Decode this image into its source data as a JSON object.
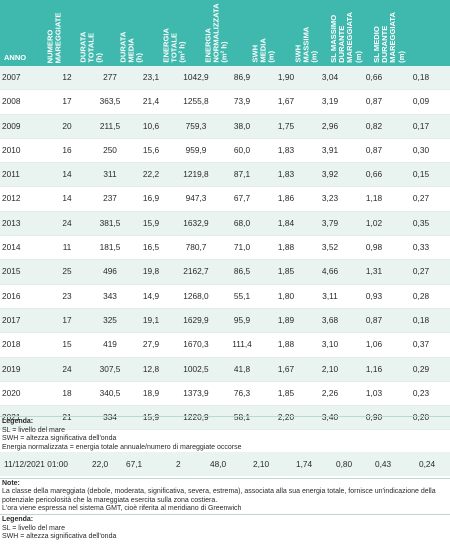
{
  "header": {
    "anno": "ANNO",
    "numero": [
      "NUMERO",
      "MAREGGIATE"
    ],
    "durata_totale": [
      "DURATA",
      "TOTALE",
      "(h)"
    ],
    "durata_media": [
      "DURATA",
      "MEDIA",
      "(h)"
    ],
    "energia_totale": [
      "ENERGIA",
      "TOTALE",
      "(m² h)"
    ],
    "energia_norm": [
      "ENERGIA",
      "NORMALIZZATA",
      "(m² h)"
    ],
    "swh_media": [
      "SWH",
      "MEDIA",
      "(m)"
    ],
    "swh_massima": [
      "SWH",
      "MASSIMA",
      "(m)"
    ],
    "sl_massimo": [
      "SL MASSIMO",
      "DURANTE",
      "MAREGGIATA",
      "(m)"
    ],
    "sl_medio": [
      "SL MEDIO",
      "DURANTE",
      "MAREGGIATA",
      "(m)"
    ]
  },
  "rows": [
    [
      "2007",
      "12",
      "277",
      "23,1",
      "1042,9",
      "86,9",
      "1,90",
      "3,04",
      "0,66",
      "0,18"
    ],
    [
      "2008",
      "17",
      "363,5",
      "21,4",
      "1255,8",
      "73,9",
      "1,67",
      "3,19",
      "0,87",
      "0,09"
    ],
    [
      "2009",
      "20",
      "211,5",
      "10,6",
      "759,3",
      "38,0",
      "1,75",
      "2,96",
      "0,82",
      "0,17"
    ],
    [
      "2010",
      "16",
      "250",
      "15,6",
      "959,9",
      "60,0",
      "1,83",
      "3,91",
      "0,87",
      "0,30"
    ],
    [
      "2011",
      "14",
      "311",
      "22,2",
      "1219,8",
      "87,1",
      "1,83",
      "3,92",
      "0,66",
      "0,15"
    ],
    [
      "2012",
      "14",
      "237",
      "16,9",
      "947,3",
      "67,7",
      "1,86",
      "3,23",
      "1,18",
      "0,27"
    ],
    [
      "2013",
      "24",
      "381,5",
      "15,9",
      "1632,9",
      "68,0",
      "1,84",
      "3,79",
      "1,02",
      "0,35"
    ],
    [
      "2014",
      "11",
      "181,5",
      "16,5",
      "780,7",
      "71,0",
      "1,88",
      "3,52",
      "0,98",
      "0,33"
    ],
    [
      "2015",
      "25",
      "496",
      "19,8",
      "2162,7",
      "86,5",
      "1,85",
      "4,66",
      "1,31",
      "0,27"
    ],
    [
      "2016",
      "23",
      "343",
      "14,9",
      "1268,0",
      "55,1",
      "1,80",
      "3,11",
      "0,93",
      "0,28"
    ],
    [
      "2017",
      "17",
      "325",
      "19,1",
      "1629,9",
      "95,9",
      "1,89",
      "3,68",
      "0,87",
      "0,18"
    ],
    [
      "2018",
      "15",
      "419",
      "27,9",
      "1670,3",
      "111,4",
      "1,88",
      "3,10",
      "1,06",
      "0,37"
    ],
    [
      "2019",
      "24",
      "307,5",
      "12,8",
      "1002,5",
      "41,8",
      "1,67",
      "2,10",
      "1,16",
      "0,29"
    ],
    [
      "2020",
      "18",
      "340,5",
      "18,9",
      "1373,9",
      "76,3",
      "1,85",
      "2,26",
      "1,03",
      "0,23"
    ],
    [
      "2021",
      "21",
      "334",
      "15,9",
      "1220,9",
      "58,1",
      "2,20",
      "3,40",
      "0,90",
      "0,20"
    ]
  ],
  "legend1": {
    "title": "Legenda:",
    "lines": [
      "SL = livello del mare",
      "SWH = altezza significativa dell'onda",
      "Energia normalizzata = energia totale annuale/numero di mareggiate occorse"
    ]
  },
  "highlight_row": [
    "11/12/2021 01:00",
    "22,0",
    "67,1",
    "2",
    "48,0",
    "2,10",
    "1,74",
    "0,80",
    "0,43",
    "0,24"
  ],
  "note": {
    "title": "Note:",
    "lines": [
      "La classe della mareggiata (debole, moderata, significativa, severa, estrema), associata alla sua energia totale, fornisce un'indicazione della potenziale pericolosità che la mareggiata esercita sulla zona costiera.",
      "L'ora viene espressa nel sistema GMT, cioè riferita al meridiano di Greenwich"
    ]
  },
  "legend2": {
    "title": "Legenda:",
    "lines": [
      "SL = livello del mare",
      "SWH = altezza significativa dell'onda"
    ]
  }
}
